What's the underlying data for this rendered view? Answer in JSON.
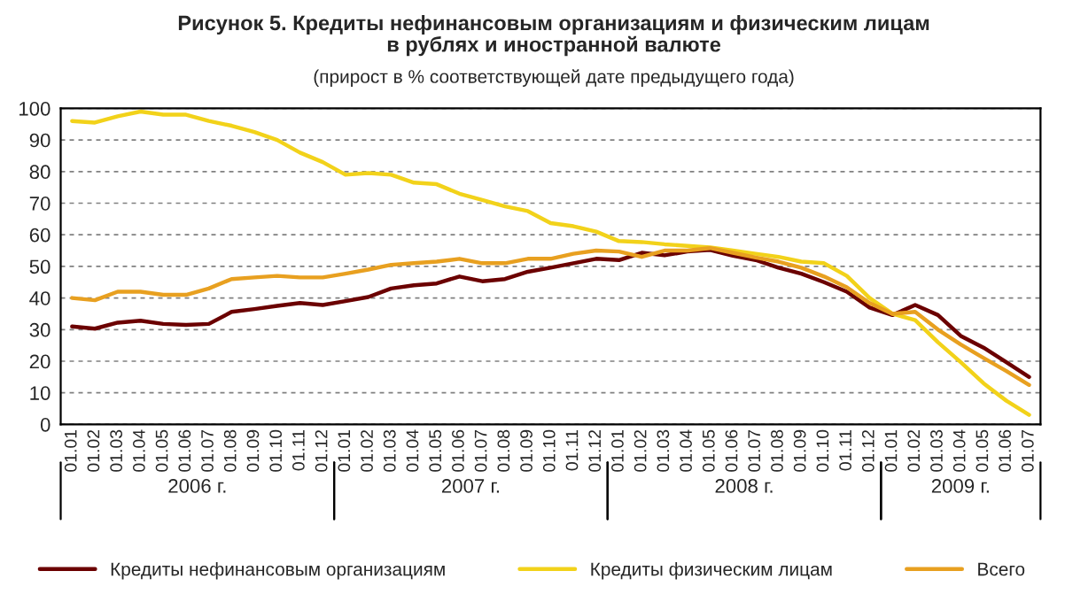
{
  "chart_data": {
    "type": "line",
    "title": "Рисунок 5. Кредиты нефинансовым организациям и физическим лицам\nв рублях и иностранной валюте",
    "subtitle": "(прирост в % соответствующей дате предыдущего года)",
    "categories": [
      "01.01",
      "01.02",
      "01.03",
      "01.04",
      "01.05",
      "01.06",
      "01.07",
      "01.08",
      "01.09",
      "01.10",
      "01.11",
      "01.12",
      "01.01",
      "01.02",
      "01.03",
      "01.04",
      "01.05",
      "01.06",
      "01.07",
      "01.08",
      "01.09",
      "01.10",
      "01.11",
      "01.12",
      "01.01",
      "01.02",
      "01.03",
      "01.04",
      "01.05",
      "01.06",
      "01.07",
      "01.08",
      "01.09",
      "01.10",
      "01.11",
      "01.12",
      "01.01",
      "01.02",
      "01.03",
      "01.04",
      "01.05",
      "01.06",
      "01.07"
    ],
    "series": [
      {
        "name": "Кредиты нефинансовым организациям",
        "color": "#6b0000",
        "values": [
          31,
          30.3,
          32.2,
          32.8,
          31.8,
          31.5,
          31.8,
          35.6,
          36.5,
          37.5,
          38.4,
          37.8,
          39,
          40.3,
          43,
          44,
          44.6,
          46.8,
          45.3,
          46,
          48.3,
          49.6,
          51,
          52.4,
          52,
          54.3,
          53.5,
          54.7,
          55.2,
          53.4,
          52,
          49.6,
          47.7,
          45,
          42,
          37,
          34.6,
          37.8,
          34.6,
          28,
          24.3,
          19.7,
          15
        ]
      },
      {
        "name": "Кредиты физическим лицам",
        "color": "#f2d21a",
        "values": [
          96,
          95.5,
          97.5,
          99,
          98,
          98,
          96,
          94.5,
          92.5,
          90,
          86,
          83,
          79,
          79.5,
          79,
          76.5,
          76,
          73,
          71,
          69,
          67.5,
          63.7,
          62.7,
          61,
          58,
          57.7,
          57,
          56.5,
          56,
          55,
          54,
          53,
          51.5,
          51,
          47,
          40,
          35,
          33,
          26,
          19.7,
          13,
          7.5,
          3
        ]
      },
      {
        "name": "Всего",
        "color": "#e8a020",
        "values": [
          40,
          39.3,
          42,
          42,
          41,
          41,
          43,
          46,
          46.5,
          47,
          46.5,
          46.5,
          47.7,
          49,
          50.5,
          51,
          51.5,
          52.4,
          51,
          51,
          52.4,
          52.4,
          54,
          55,
          54.7,
          53,
          55,
          55,
          55.8,
          54.3,
          52.8,
          51.5,
          49.6,
          46.8,
          43.4,
          38.4,
          35,
          35.6,
          30,
          25.3,
          21,
          16.9,
          12.5
        ]
      }
    ],
    "annotations": [
      "2006 г.",
      "2007 г.",
      "2008 г.",
      "2009 г."
    ],
    "ylim": [
      0,
      100
    ],
    "yticks": [
      0,
      10,
      20,
      30,
      40,
      50,
      60,
      70,
      80,
      90,
      100
    ],
    "grid": "y",
    "legend": "bottom",
    "line_style": "solid",
    "marker": "none"
  }
}
